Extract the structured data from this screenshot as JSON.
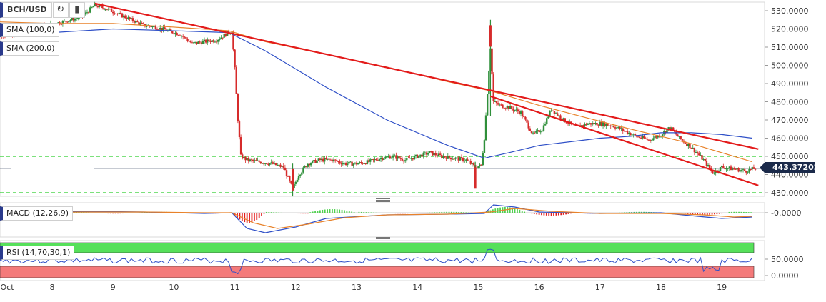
{
  "header": {
    "symbol": "BCH/USD"
  },
  "toolbar": {
    "refresh_icon": "refresh-icon",
    "bars_icon": "bar-chart-icon"
  },
  "current_price": "443.37202",
  "indicators": {
    "sma100": "SMA (100,0)",
    "sma200": "SMA (200,0)",
    "macd": "MACD (12,26,9)",
    "rsi": "RSI (14,70,30,1)"
  },
  "colors": {
    "candle_up": "#2f8f3a",
    "candle_down": "#d62b2b",
    "sma100": "#2e4fc7",
    "sma200": "#e8822a",
    "trendline": "#e31b1b",
    "support_dashed": "#2fcf2f",
    "rsi_overbought": "#56e05a",
    "rsi_oversold": "#f47a7a",
    "rsi_line": "#2e4fc7",
    "macd_line": "#2e4fc7",
    "signal_line": "#e8822a"
  },
  "chart_data": [
    {
      "type": "candlestick",
      "title": "BCH/USD",
      "x_ticks": [
        "Oct",
        "8",
        "9",
        "10",
        "11",
        "12",
        "13",
        "14",
        "15",
        "16",
        "17",
        "18",
        "19"
      ],
      "y_ticks": [
        "530.0000",
        "520.0000",
        "510.0000",
        "500.0000",
        "490.0000",
        "480.0000",
        "470.0000",
        "460.0000",
        "450.0000",
        "440.0000",
        "430.0000"
      ],
      "ylim": [
        427,
        535
      ],
      "close_path": [
        [
          7.0,
          518
        ],
        [
          7.3,
          516
        ],
        [
          7.6,
          519
        ],
        [
          7.9,
          522
        ],
        [
          8.2,
          524
        ],
        [
          8.5,
          527
        ],
        [
          8.7,
          533
        ],
        [
          8.9,
          531
        ],
        [
          9.1,
          528
        ],
        [
          9.3,
          525
        ],
        [
          9.5,
          522
        ],
        [
          9.7,
          521
        ],
        [
          9.9,
          519
        ],
        [
          10.1,
          517
        ],
        [
          10.3,
          512
        ],
        [
          10.5,
          513
        ],
        [
          10.7,
          514
        ],
        [
          10.85,
          517
        ],
        [
          10.95,
          519
        ],
        [
          11.0,
          498
        ],
        [
          11.05,
          470
        ],
        [
          11.1,
          450
        ],
        [
          11.2,
          448
        ],
        [
          11.4,
          447
        ],
        [
          11.6,
          446
        ],
        [
          11.8,
          444
        ],
        [
          11.95,
          432
        ],
        [
          12.05,
          440
        ],
        [
          12.2,
          446
        ],
        [
          12.4,
          448
        ],
        [
          12.6,
          448
        ],
        [
          12.8,
          446
        ],
        [
          13.0,
          446
        ],
        [
          13.2,
          447
        ],
        [
          13.4,
          449
        ],
        [
          13.6,
          450
        ],
        [
          13.8,
          448
        ],
        [
          14.0,
          450
        ],
        [
          14.2,
          452
        ],
        [
          14.4,
          450
        ],
        [
          14.6,
          449
        ],
        [
          14.8,
          448
        ],
        [
          14.95,
          444
        ],
        [
          15.05,
          445
        ],
        [
          15.1,
          460
        ],
        [
          15.15,
          485
        ],
        [
          15.2,
          510
        ],
        [
          15.25,
          480
        ],
        [
          15.35,
          478
        ],
        [
          15.5,
          477
        ],
        [
          15.7,
          474
        ],
        [
          15.9,
          462
        ],
        [
          16.05,
          465
        ],
        [
          16.2,
          476
        ],
        [
          16.4,
          470
        ],
        [
          16.6,
          466
        ],
        [
          16.8,
          468
        ],
        [
          17.0,
          468
        ],
        [
          17.2,
          467
        ],
        [
          17.4,
          464
        ],
        [
          17.6,
          461
        ],
        [
          17.8,
          459
        ],
        [
          18.0,
          462
        ],
        [
          18.15,
          466
        ],
        [
          18.3,
          460
        ],
        [
          18.5,
          455
        ],
        [
          18.7,
          448
        ],
        [
          18.85,
          441
        ],
        [
          19.0,
          444
        ],
        [
          19.2,
          443
        ],
        [
          19.4,
          442
        ],
        [
          19.55,
          443.4
        ]
      ],
      "wicks": [
        {
          "x": 15.2,
          "high": 525,
          "low": 472
        },
        {
          "x": 11.95,
          "high": 446,
          "low": 428
        },
        {
          "x": 14.95,
          "high": 447,
          "low": 436
        }
      ],
      "series": [
        {
          "name": "SMA (100,0)",
          "values": [
            [
              7.0,
              516
            ],
            [
              8.0,
              518
            ],
            [
              9.0,
              520
            ],
            [
              10.0,
              519
            ],
            [
              10.9,
              518
            ],
            [
              11.5,
              508
            ],
            [
              12.5,
              488
            ],
            [
              13.5,
              470
            ],
            [
              14.5,
              456
            ],
            [
              15.1,
              449
            ],
            [
              15.5,
              452
            ],
            [
              16.0,
              456
            ],
            [
              16.5,
              458
            ],
            [
              17.0,
              460
            ],
            [
              17.5,
              461
            ],
            [
              18.0,
              463
            ],
            [
              18.5,
              463
            ],
            [
              19.0,
              462
            ],
            [
              19.5,
              460
            ]
          ]
        },
        {
          "name": "SMA (200,0)",
          "values": [
            [
              7.0,
              524
            ],
            [
              8.0,
              523
            ],
            [
              9.0,
              523
            ],
            [
              10.0,
              521
            ],
            [
              10.9,
              519
            ],
            [
              11.5,
              513
            ],
            [
              12.5,
              506
            ],
            [
              13.5,
              499
            ],
            [
              14.5,
              491
            ],
            [
              15.2,
              486
            ],
            [
              16.0,
              478
            ],
            [
              16.8,
              471
            ],
            [
              17.5,
              465
            ],
            [
              18.0,
              461
            ],
            [
              18.5,
              457
            ],
            [
              19.0,
              452
            ],
            [
              19.5,
              447
            ]
          ]
        }
      ],
      "trendlines": [
        {
          "from": [
            8.7,
            534
          ],
          "to": [
            19.6,
            454
          ]
        },
        {
          "from": [
            15.2,
            483
          ],
          "to": [
            19.6,
            434
          ]
        }
      ],
      "horizontal_levels": [
        450,
        430
      ]
    },
    {
      "type": "line",
      "title": "MACD (12,26,9)",
      "y_ticks": [
        "-0.0000"
      ]
    },
    {
      "type": "line",
      "title": "RSI (14,70,30,1)",
      "y_ticks": [
        "50.0000",
        "0.0000"
      ]
    }
  ]
}
